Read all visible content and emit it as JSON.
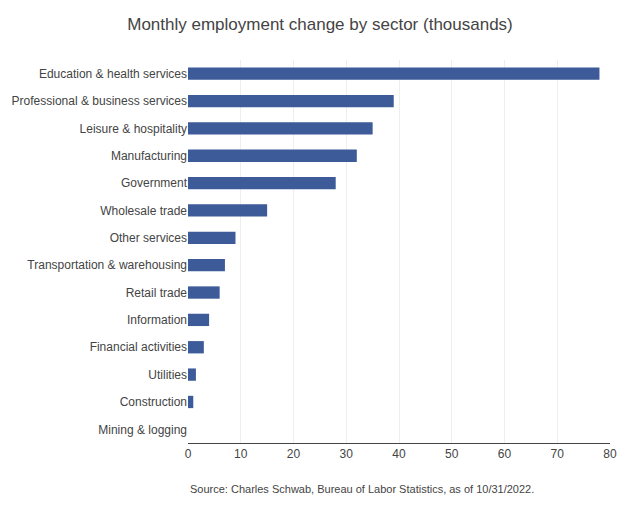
{
  "chart_data": {
    "type": "bar",
    "orientation": "horizontal",
    "title": "Monthly employment change by sector (thousands)",
    "categories": [
      "Mining & logging",
      "Construction",
      "Utilities",
      "Financial activities",
      "Information",
      "Retail trade",
      "Transportation & warehousing",
      "Other services",
      "Wholesale trade",
      "Government",
      "Manufacturing",
      "Leisure & hospitality",
      "Professional & business services",
      "Education & health services"
    ],
    "values": [
      0,
      1,
      1.5,
      3,
      4,
      6,
      7,
      9,
      15,
      28,
      32,
      35,
      39,
      78
    ],
    "color": "#3d5a99",
    "xlim": [
      0,
      80
    ],
    "xticks": [
      0,
      10,
      20,
      30,
      40,
      50,
      60,
      70,
      80
    ],
    "grid": true,
    "annotations": [
      "Source: Charles Schwab, Bureau of Labor Statistics, as of 10/31/2022."
    ]
  }
}
